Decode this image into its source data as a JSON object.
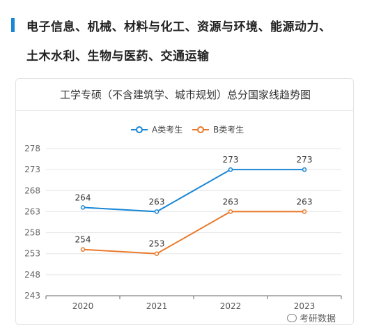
{
  "heading": {
    "line1": "电子信息、机械、材料与化工、资源与环境、能源动力、",
    "line2": "土木水利、生物与医药、交通运输"
  },
  "watermark": {
    "text": "考研数据",
    "icon": "wechat-icon"
  },
  "colors": {
    "accent": "#1a87d6",
    "seriesA": "#1a87d6",
    "seriesB": "#e8792b",
    "grid": "#e6e6e6"
  },
  "chart_data": {
    "type": "line",
    "title": "工学专硕（不含建筑学、城市规划）总分国家线趋势图",
    "categories": [
      "2020",
      "2021",
      "2022",
      "2023"
    ],
    "series": [
      {
        "name": "A类考生",
        "values": [
          264,
          263,
          273,
          273
        ],
        "color": "#1a87d6"
      },
      {
        "name": "B类考生",
        "values": [
          254,
          253,
          263,
          263
        ],
        "color": "#e8792b"
      }
    ],
    "yticks": [
      243,
      248,
      253,
      258,
      263,
      268,
      273,
      278
    ],
    "ylim": [
      243,
      278
    ],
    "grid": true,
    "legend_position": "top-center",
    "data_labels": true
  }
}
